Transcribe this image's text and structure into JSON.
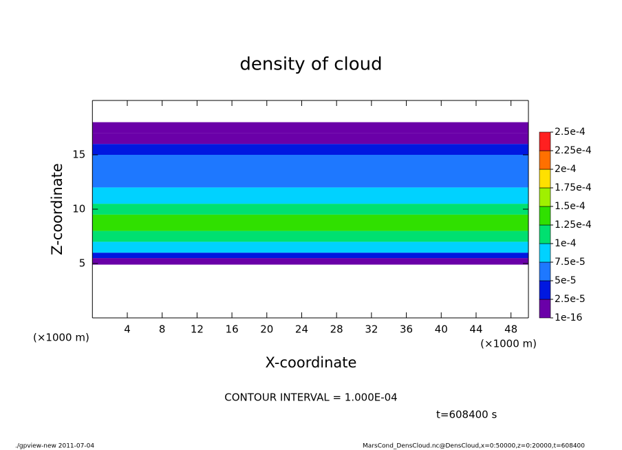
{
  "chart_data": {
    "type": "contour",
    "title": "density of cloud",
    "x_label": "X-coordinate",
    "y_label": "Z-coordinate",
    "x_unit": "(×1000 m)",
    "y_unit": "(×1000 m)",
    "xlim": [
      0,
      50
    ],
    "ylim": [
      0,
      20
    ],
    "xticks": [
      4,
      8,
      12,
      16,
      20,
      24,
      28,
      32,
      36,
      40,
      44,
      48
    ],
    "yticks": [
      5,
      10,
      15
    ],
    "z_edges": [
      4.9,
      5.5,
      6,
      7,
      8,
      9.5,
      10.5,
      12,
      15,
      16,
      17,
      18
    ],
    "values": [
      1e-05,
      3e-05,
      8e-05,
      0.00012,
      0.00014,
      0.00011,
      8e-05,
      6e-05,
      4e-05,
      2e-05,
      1e-05
    ],
    "levels": [
      1e-16,
      {
        "value": 2.5e-05,
        "label": "2.5e-5"
      },
      {
        "value": 5e-05,
        "label": "5e-5"
      },
      {
        "value": 7.5e-05,
        "label": "7.5e-5"
      },
      {
        "value": 0.0001,
        "label": "1e-4"
      },
      {
        "value": 0.000125,
        "label": "1.25e-4"
      },
      {
        "value": 0.00015,
        "label": "1.5e-4"
      },
      {
        "value": 0.000175,
        "label": "1.75e-4"
      },
      {
        "value": 0.0002,
        "label": "2e-4"
      },
      {
        "value": 0.000225,
        "label": "2.25e-4"
      },
      {
        "value": 0.00025,
        "label": "2.5e-4"
      }
    ],
    "level_colors": [
      "#6a00a8",
      "#0018e0",
      "#1e78ff",
      "#00d2ff",
      "#00e070",
      "#30e000",
      "#a0f000",
      "#ffe000",
      "#ff7000",
      "#ff2020"
    ],
    "contour_interval": "CONTOUR INTERVAL = 1.000E-04",
    "time_label": "t=608400 s",
    "footer_left": "./gpview-new  2011-07-04",
    "footer_right": "MarsCond_DensCloud.nc@DensCloud,x=0:50000,z=0:20000,t=608400"
  }
}
